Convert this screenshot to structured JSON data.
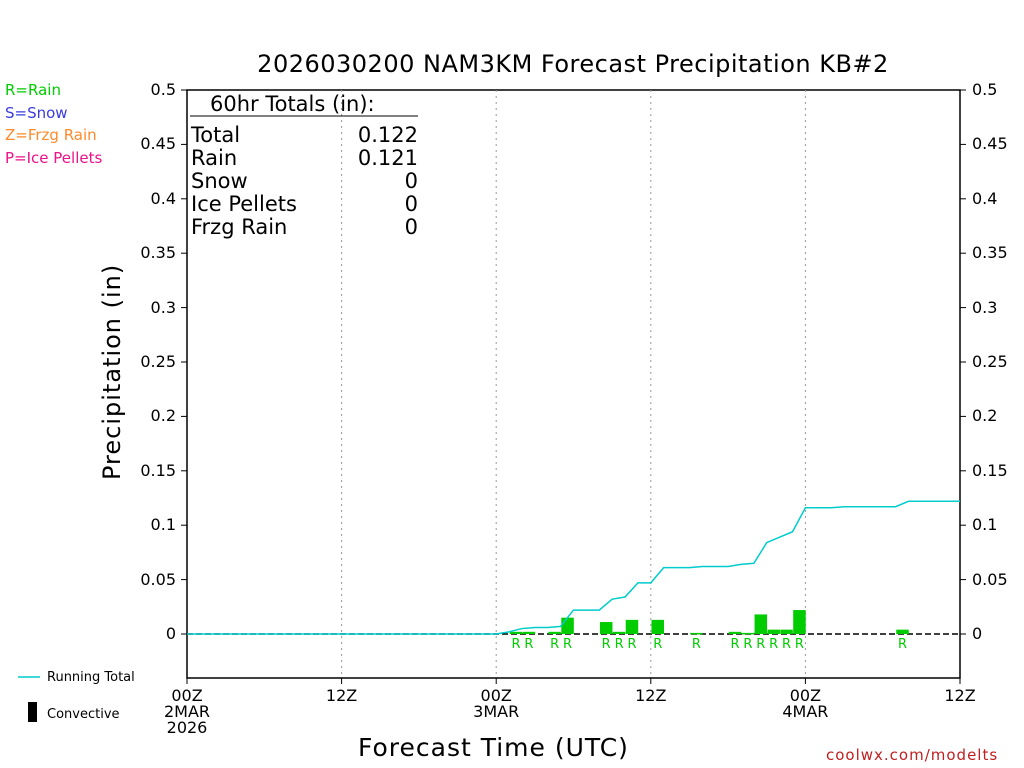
{
  "chart_data": {
    "type": "bar",
    "title": "2026030200 NAM3KM Forecast Precipitation KB#2",
    "ylabel": "Precipitation (in)",
    "xlabel": "Forecast Time (UTC)",
    "ylim": [
      -0.04,
      0.5
    ],
    "y_ticks": [
      "0.5",
      "0.45",
      "0.4",
      "0.35",
      "0.3",
      "0.25",
      "0.2",
      "0.15",
      "0.1",
      "0.05",
      "0"
    ],
    "y_tick_values": [
      0.5,
      0.45,
      0.4,
      0.35,
      0.3,
      0.25,
      0.2,
      0.15,
      0.1,
      0.05,
      0
    ],
    "xlim_hours": [
      0,
      60
    ],
    "x_ticks": [
      {
        "hour": 0,
        "label": "00Z",
        "sub": "2MAR",
        "sub2": "2026"
      },
      {
        "hour": 12,
        "label": "12Z",
        "sub": "",
        "sub2": ""
      },
      {
        "hour": 24,
        "label": "00Z",
        "sub": "3MAR",
        "sub2": ""
      },
      {
        "hour": 36,
        "label": "12Z",
        "sub": "",
        "sub2": ""
      },
      {
        "hour": 48,
        "label": "00Z",
        "sub": "4MAR",
        "sub2": ""
      },
      {
        "hour": 60,
        "label": "12Z",
        "sub": "",
        "sub2": ""
      }
    ],
    "bars": [
      {
        "hour": 26,
        "value": 0.002,
        "type": "R"
      },
      {
        "hour": 27,
        "value": 0.002,
        "type": "R"
      },
      {
        "hour": 29,
        "value": 0.002,
        "type": "R"
      },
      {
        "hour": 30,
        "value": 0.015,
        "type": "R"
      },
      {
        "hour": 33,
        "value": 0.011,
        "type": "R"
      },
      {
        "hour": 34,
        "value": 0.002,
        "type": "R"
      },
      {
        "hour": 35,
        "value": 0.013,
        "type": "R"
      },
      {
        "hour": 37,
        "value": 0.013,
        "type": "R"
      },
      {
        "hour": 40,
        "value": 0.001,
        "type": "R"
      },
      {
        "hour": 43,
        "value": 0.002,
        "type": "R"
      },
      {
        "hour": 44,
        "value": 0.001,
        "type": "R"
      },
      {
        "hour": 45,
        "value": 0.018,
        "type": "R"
      },
      {
        "hour": 46,
        "value": 0.004,
        "type": "R"
      },
      {
        "hour": 47,
        "value": 0.004,
        "type": "R"
      },
      {
        "hour": 48,
        "value": 0.022,
        "type": "R"
      },
      {
        "hour": 56,
        "value": 0.004,
        "type": "R"
      }
    ],
    "series": [
      {
        "name": "Running Total",
        "x": [
          0,
          24,
          25,
          26,
          27,
          28,
          29,
          30,
          31,
          32,
          33,
          34,
          35,
          36,
          37,
          38,
          39,
          40,
          41,
          42,
          43,
          44,
          45,
          46,
          47,
          48,
          49,
          50,
          51,
          52,
          53,
          54,
          55,
          56,
          57,
          58,
          59,
          60
        ],
        "values": [
          0,
          0,
          0.002,
          0.005,
          0.006,
          0.006,
          0.007,
          0.022,
          0.022,
          0.022,
          0.032,
          0.034,
          0.047,
          0.047,
          0.061,
          0.061,
          0.061,
          0.062,
          0.062,
          0.062,
          0.064,
          0.065,
          0.084,
          0.089,
          0.094,
          0.116,
          0.116,
          0.116,
          0.117,
          0.117,
          0.117,
          0.117,
          0.117,
          0.122,
          0.122,
          0.122,
          0.122,
          0.122
        ]
      }
    ],
    "colors": {
      "rain": "#00cc00",
      "snow": "#0000ff",
      "frzg": "#ff8000",
      "ice": "#ff0099",
      "running": "#00cccc",
      "grid": "#999999"
    }
  },
  "legend": {
    "rain": "R=Rain",
    "snow": "S=Snow",
    "frzg": "Z=Frzg Rain",
    "ice": "P=Ice Pellets",
    "running_total": "Running Total",
    "convective": "Convective"
  },
  "totals": {
    "header": "60hr Totals (in):",
    "rows": [
      {
        "label": "Total",
        "value": "0.122"
      },
      {
        "label": "Rain",
        "value": "0.121"
      },
      {
        "label": "Snow",
        "value": "0"
      },
      {
        "label": "Ice Pellets",
        "value": "0"
      },
      {
        "label": "Frzg Rain",
        "value": "0"
      }
    ]
  },
  "credit": "coolwx.com/modelts"
}
